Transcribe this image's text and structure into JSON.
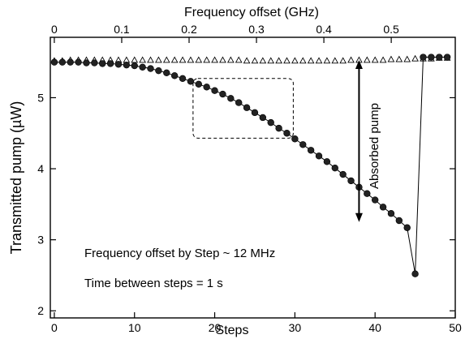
{
  "chart_data": {
    "type": "scatter",
    "xlabel": "Steps",
    "x2label": "Frequency offset (GHz)",
    "ylabel": "Transmitted pump (µW)",
    "xlim": [
      -0.5,
      50
    ],
    "x2lim": [
      -0.00595,
      0.595
    ],
    "ylim": [
      1.9,
      5.85
    ],
    "xticks": [
      0,
      10,
      20,
      30,
      40,
      50
    ],
    "xtick_labels": [
      "0",
      "10",
      "20",
      "30",
      "40",
      "50"
    ],
    "x2ticks": [
      0,
      0.1,
      0.2,
      0.3,
      0.4,
      0.5
    ],
    "x2tick_labels": [
      "0",
      "0.1",
      "0.2",
      "0.3",
      "0.4",
      "0.5"
    ],
    "yticks": [
      2,
      3,
      4,
      5
    ],
    "ytick_labels": [
      "2",
      "3",
      "4",
      "5"
    ],
    "grid": false,
    "series": [
      {
        "marker": "open-triangle",
        "x": [
          0,
          1,
          2,
          3,
          4,
          5,
          6,
          7,
          8,
          9,
          10,
          11,
          12,
          13,
          14,
          15,
          16,
          17,
          18,
          19,
          20,
          21,
          22,
          23,
          24,
          25,
          26,
          27,
          28,
          29,
          30,
          31,
          32,
          33,
          34,
          35,
          36,
          37,
          38,
          39,
          40,
          41,
          42,
          43,
          44,
          45,
          46,
          47,
          48,
          49
        ],
        "y": [
          5.52,
          5.52,
          5.53,
          5.53,
          5.53,
          5.53,
          5.53,
          5.53,
          5.53,
          5.53,
          5.53,
          5.53,
          5.53,
          5.53,
          5.53,
          5.53,
          5.53,
          5.53,
          5.53,
          5.53,
          5.53,
          5.53,
          5.53,
          5.53,
          5.52,
          5.52,
          5.52,
          5.52,
          5.52,
          5.52,
          5.52,
          5.52,
          5.52,
          5.52,
          5.52,
          5.52,
          5.52,
          5.53,
          5.53,
          5.53,
          5.53,
          5.53,
          5.54,
          5.54,
          5.54,
          5.55,
          5.55,
          5.55,
          5.56,
          5.56
        ]
      },
      {
        "marker": "filled-circle",
        "x": [
          0,
          1,
          2,
          3,
          4,
          5,
          6,
          7,
          8,
          9,
          10,
          11,
          12,
          13,
          14,
          15,
          16,
          17,
          18,
          19,
          20,
          21,
          22,
          23,
          24,
          25,
          26,
          27,
          28,
          29,
          30,
          31,
          32,
          33,
          34,
          35,
          36,
          37,
          38,
          39,
          40,
          41,
          42,
          43,
          44,
          45,
          46,
          47,
          48,
          49
        ],
        "y": [
          5.5,
          5.5,
          5.5,
          5.5,
          5.49,
          5.49,
          5.48,
          5.48,
          5.47,
          5.46,
          5.45,
          5.43,
          5.41,
          5.38,
          5.35,
          5.31,
          5.27,
          5.23,
          5.19,
          5.15,
          5.1,
          5.05,
          4.99,
          4.93,
          4.86,
          4.79,
          4.72,
          4.65,
          4.57,
          4.5,
          4.42,
          4.34,
          4.26,
          4.18,
          4.1,
          4.01,
          3.92,
          3.83,
          3.74,
          3.65,
          3.56,
          3.46,
          3.37,
          3.27,
          3.17,
          2.52,
          5.57,
          5.57,
          5.57,
          5.57
        ],
        "line": true
      }
    ],
    "arrow": {
      "x": 38,
      "y_from": 5.53,
      "y_to": 3.25
    },
    "highlight_box": {
      "x0": 17.3,
      "x1": 29.8,
      "y0": 4.43,
      "y1": 5.27
    },
    "annotations": {
      "absorbed": "Absorbed pump",
      "step_freq": "Frequency offset by Step  ~ 12 MHz",
      "time_steps": "Time between steps = 1 s"
    }
  }
}
